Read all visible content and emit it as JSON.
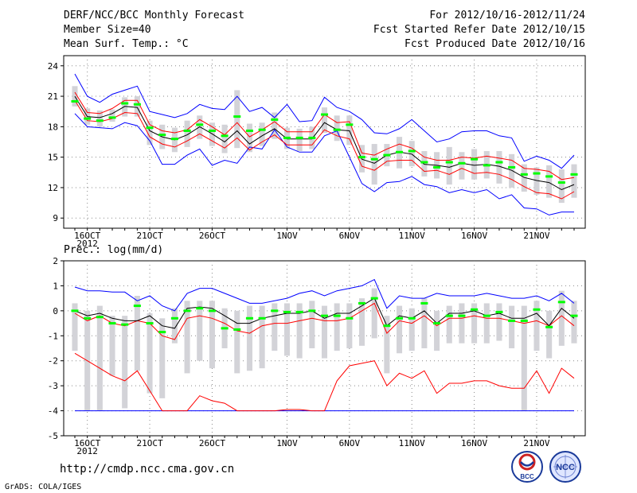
{
  "header": {
    "title": "DERF/NCC/BCC Monthly Forecast",
    "member_size": "Member Size=40",
    "variable": "Mean Surf. Temp.: °C",
    "forecast_range": "For 2012/10/16-2012/11/24",
    "start_date": "Fcst Started Refer Date 2012/10/15",
    "produced_date": "Fcst Produced Date 2012/10/16"
  },
  "footer": {
    "url": "http://cmdp.ncc.cma.gov.cn",
    "grads": "GrADS: COLA/IGES",
    "logo_bcc": "BCC",
    "logo_ncc": "NCC"
  },
  "colors": {
    "mean": "#000000",
    "spread": "#ff0000",
    "envelope": "#0000ff",
    "median": "#00ff00",
    "box": "#d3d3d8",
    "grid": "#888888"
  },
  "chart_data": [
    {
      "type": "box",
      "title": "Mean Surf. Temp.: °C",
      "xlabel": "",
      "ylabel": "",
      "ylim": [
        8,
        25
      ],
      "yticks": [
        9,
        12,
        15,
        18,
        21,
        24
      ],
      "x_ticks": [
        {
          "day": 1,
          "label": "16OCT",
          "sub": "2012"
        },
        {
          "day": 6,
          "label": "21OCT"
        },
        {
          "day": 11,
          "label": "26OCT"
        },
        {
          "day": 17,
          "label": "1NOV"
        },
        {
          "day": 22,
          "label": "6NOV"
        },
        {
          "day": 27,
          "label": "11NOV"
        },
        {
          "day": 32,
          "label": "16NOV"
        },
        {
          "day": 37,
          "label": "21NOV"
        }
      ],
      "days": 40,
      "series": [
        {
          "name": "ensemble max",
          "color": "#0000ff",
          "values": [
            23.2,
            21.0,
            20.4,
            21.2,
            21.6,
            22.0,
            19.5,
            19.2,
            18.9,
            19.3,
            20.2,
            19.8,
            19.7,
            21.0,
            19.5,
            19.9,
            18.9,
            20.2,
            18.5,
            18.6,
            20.9,
            19.9,
            19.5,
            18.7,
            17.4,
            17.3,
            17.8,
            18.7,
            17.6,
            16.5,
            16.8,
            17.5,
            17.6,
            17.6,
            17.1,
            16.9,
            14.6,
            15.1,
            14.7,
            13.9,
            15.2
          ]
        },
        {
          "name": "ensemble min",
          "color": "#0000ff",
          "values": [
            19.3,
            18.0,
            17.9,
            17.8,
            18.4,
            18.1,
            16.6,
            14.3,
            14.3,
            15.2,
            15.8,
            14.2,
            14.7,
            14.4,
            16.0,
            15.8,
            17.7,
            16.0,
            15.5,
            15.5,
            17.1,
            17.6,
            15.0,
            12.4,
            11.6,
            12.5,
            12.6,
            13.1,
            12.3,
            12.1,
            11.5,
            11.8,
            11.5,
            11.8,
            10.9,
            11.3,
            10.0,
            9.9,
            9.3,
            9.6,
            9.6
          ]
        },
        {
          "name": "mean + spread",
          "color": "#ff0000",
          "values": [
            21.4,
            19.4,
            19.3,
            19.8,
            20.6,
            20.6,
            18.2,
            17.6,
            17.4,
            17.7,
            18.7,
            18.0,
            17.2,
            18.4,
            17.0,
            17.7,
            18.5,
            17.5,
            17.5,
            17.5,
            19.2,
            18.4,
            18.5,
            15.4,
            15.2,
            15.8,
            16.3,
            15.9,
            15.0,
            14.7,
            14.7,
            15.0,
            14.9,
            15.1,
            14.9,
            14.7,
            13.9,
            13.8,
            13.6,
            12.8,
            13.0
          ]
        },
        {
          "name": "mean - spread",
          "color": "#ff0000",
          "values": [
            20.6,
            18.6,
            18.5,
            18.8,
            19.4,
            19.3,
            17.0,
            16.3,
            16.0,
            16.6,
            17.3,
            16.6,
            15.9,
            16.9,
            15.7,
            16.5,
            17.2,
            16.2,
            16.2,
            16.2,
            17.7,
            17.1,
            16.8,
            14.1,
            13.7,
            14.6,
            14.7,
            14.7,
            13.6,
            13.7,
            13.3,
            13.9,
            13.4,
            13.5,
            13.3,
            12.8,
            12.1,
            11.5,
            11.4,
            10.9,
            11.6
          ]
        },
        {
          "name": "ensemble mean",
          "color": "#000000",
          "values": [
            21.0,
            19.0,
            18.9,
            19.3,
            20.0,
            19.9,
            17.6,
            17.0,
            16.7,
            17.2,
            18.0,
            17.3,
            16.5,
            17.6,
            16.3,
            17.1,
            17.8,
            16.8,
            16.8,
            16.8,
            18.4,
            17.7,
            17.6,
            14.8,
            14.4,
            15.2,
            15.5,
            15.3,
            14.3,
            14.2,
            14.0,
            14.4,
            14.2,
            14.3,
            14.1,
            13.7,
            13.0,
            12.7,
            12.5,
            11.8,
            12.3
          ]
        },
        {
          "name": "median",
          "color": "#00ff00",
          "values": [
            20.5,
            18.8,
            18.6,
            18.9,
            20.3,
            20.2,
            17.9,
            17.2,
            16.8,
            17.6,
            18.2,
            17.6,
            17.1,
            19.0,
            17.6,
            17.7,
            18.7,
            16.9,
            16.9,
            16.9,
            19.2,
            17.7,
            18.2,
            15.0,
            14.8,
            15.2,
            15.5,
            15.6,
            14.5,
            14.0,
            14.5,
            14.4,
            14.8,
            14.2,
            14.5,
            14.0,
            13.3,
            13.4,
            13.1,
            12.5,
            13.3
          ]
        },
        {
          "name": "box upper",
          "color": "#d3d3d8",
          "values": [
            22.0,
            19.8,
            19.6,
            19.7,
            20.9,
            21.0,
            18.6,
            18.2,
            17.9,
            18.6,
            19.1,
            18.4,
            18.2,
            21.6,
            18.3,
            18.4,
            19.4,
            17.9,
            17.8,
            18.0,
            19.9,
            19.1,
            19.1,
            16.2,
            16.3,
            16.3,
            17.0,
            16.6,
            15.6,
            15.5,
            16.0,
            15.5,
            15.8,
            15.6,
            15.6,
            15.3,
            14.3,
            14.0,
            14.2,
            13.8,
            14.3
          ]
        },
        {
          "name": "box lower",
          "color": "#d3d3d8",
          "values": [
            20.0,
            18.2,
            18.0,
            18.5,
            19.0,
            19.0,
            16.2,
            15.8,
            15.5,
            16.0,
            16.8,
            16.1,
            15.4,
            15.9,
            15.5,
            16.1,
            16.8,
            15.8,
            15.6,
            15.8,
            17.4,
            16.6,
            16.2,
            13.5,
            12.3,
            14.1,
            13.9,
            14.1,
            13.1,
            12.9,
            12.3,
            12.8,
            12.8,
            12.9,
            12.4,
            12.0,
            11.6,
            11.3,
            11.0,
            10.5,
            11.0
          ]
        }
      ]
    },
    {
      "type": "box",
      "title": "Prec.: log(mm/d)",
      "xlabel": "",
      "ylabel": "",
      "ylim": [
        -5,
        2
      ],
      "yticks": [
        -5,
        -4,
        -3,
        -2,
        -1,
        0,
        1,
        2
      ],
      "x_ticks": [
        {
          "day": 1,
          "label": "16OCT",
          "sub": "2012"
        },
        {
          "day": 6,
          "label": "21OCT"
        },
        {
          "day": 11,
          "label": "26OCT"
        },
        {
          "day": 17,
          "label": "1NOV"
        },
        {
          "day": 22,
          "label": "6NOV"
        },
        {
          "day": 27,
          "label": "11NOV"
        },
        {
          "day": 32,
          "label": "16NOV"
        },
        {
          "day": 37,
          "label": "21NOV"
        }
      ],
      "days": 40,
      "series": [
        {
          "name": "ensemble max",
          "color": "#0000ff",
          "values": [
            0.95,
            0.8,
            0.8,
            0.75,
            0.75,
            0.4,
            0.6,
            0.2,
            0.0,
            0.7,
            0.9,
            0.9,
            0.7,
            0.5,
            0.3,
            0.3,
            0.4,
            0.5,
            0.7,
            0.8,
            0.6,
            0.8,
            0.9,
            1.0,
            1.25,
            0.1,
            0.6,
            0.5,
            0.5,
            0.7,
            0.6,
            0.6,
            0.6,
            0.7,
            0.6,
            0.5,
            0.5,
            0.6,
            0.4,
            0.7,
            0.3
          ]
        },
        {
          "name": "ensemble min",
          "color": "#0000ff",
          "values": [
            -4,
            -4,
            -4,
            -4,
            -4,
            -4,
            -4,
            -4,
            -4,
            -4,
            -4,
            -4,
            -4,
            -4,
            -4,
            -4,
            -4,
            -4,
            -4,
            -4,
            -4,
            -4,
            -4,
            -4,
            -4,
            -4,
            -4,
            -4,
            -4,
            -4,
            -4,
            -4,
            -4,
            -4,
            -4,
            -4,
            -4,
            -4,
            -4,
            -4,
            -4
          ]
        },
        {
          "name": "mean + spread",
          "color": "#ff0000",
          "values": [
            -0.1,
            -0.4,
            -0.2,
            -0.5,
            -0.6,
            -0.4,
            -0.5,
            -1.0,
            -1.15,
            -0.3,
            -0.2,
            -0.3,
            -0.5,
            -0.8,
            -0.9,
            -0.6,
            -0.5,
            -0.5,
            -0.4,
            -0.3,
            -0.4,
            -0.4,
            -0.3,
            0.0,
            0.3,
            -0.9,
            -0.4,
            -0.5,
            -0.2,
            -0.6,
            -0.3,
            -0.3,
            -0.2,
            -0.3,
            -0.3,
            -0.4,
            -0.5,
            -0.4,
            -0.6,
            -0.2,
            -0.6
          ]
        },
        {
          "name": "mean - spread",
          "color": "#ff0000",
          "values": [
            -1.7,
            -2.0,
            -2.3,
            -2.6,
            -2.8,
            -2.4,
            -3.2,
            -4.0,
            -4.0,
            -4.0,
            -3.4,
            -3.6,
            -3.7,
            -4.0,
            -4.0,
            -4.0,
            -4.0,
            -3.95,
            -3.95,
            -4.0,
            -4.0,
            -2.8,
            -2.2,
            -2.1,
            -2.0,
            -3.0,
            -2.5,
            -2.7,
            -2.4,
            -3.3,
            -2.9,
            -2.9,
            -2.8,
            -2.8,
            -3.0,
            -3.1,
            -3.1,
            -2.4,
            -3.3,
            -2.3,
            -2.7
          ]
        },
        {
          "name": "ensemble mean",
          "color": "#000000",
          "values": [
            0.0,
            -0.2,
            -0.1,
            -0.3,
            -0.4,
            -0.4,
            -0.2,
            -0.6,
            -0.7,
            0.1,
            0.15,
            0.1,
            -0.2,
            -0.5,
            -0.5,
            -0.3,
            -0.2,
            -0.1,
            -0.1,
            0.0,
            -0.3,
            -0.1,
            -0.1,
            0.2,
            0.5,
            -0.6,
            -0.2,
            -0.3,
            0.0,
            -0.5,
            -0.1,
            -0.1,
            0.0,
            -0.2,
            -0.1,
            -0.3,
            -0.3,
            -0.1,
            -0.6,
            0.1,
            -0.3
          ]
        },
        {
          "name": "median",
          "color": "#00ff00",
          "values": [
            0.0,
            -0.3,
            -0.25,
            -0.5,
            -0.55,
            0.2,
            -0.5,
            -0.85,
            -0.3,
            0.0,
            0.1,
            0.0,
            -0.7,
            -0.75,
            -0.3,
            -0.3,
            0.0,
            -0.05,
            -0.05,
            0.0,
            -0.2,
            -0.2,
            -0.3,
            0.3,
            0.5,
            -0.6,
            -0.3,
            -0.3,
            0.3,
            -0.5,
            -0.2,
            -0.2,
            0.05,
            -0.2,
            -0.05,
            -0.4,
            -0.4,
            0.05,
            -0.65,
            0.35,
            -0.2
          ]
        },
        {
          "name": "box upper",
          "color": "#d3d3d8",
          "values": [
            0.3,
            0.0,
            0.2,
            -0.2,
            -0.2,
            0.6,
            -0.1,
            -0.3,
            0.1,
            0.4,
            0.4,
            0.4,
            0.1,
            0.0,
            0.2,
            0.2,
            0.3,
            0.3,
            0.3,
            0.4,
            0.2,
            0.3,
            0.3,
            0.5,
            0.9,
            -0.2,
            0.2,
            0.1,
            0.5,
            0.0,
            0.2,
            0.3,
            0.3,
            0.3,
            0.3,
            0.2,
            0.2,
            0.4,
            0.0,
            0.8,
            0.4
          ]
        },
        {
          "name": "box lower",
          "color": "#d3d3d8",
          "values": [
            -1.6,
            -4.0,
            -4.0,
            -2.6,
            -3.9,
            -2.4,
            -3.3,
            -3.5,
            -1.3,
            -2.5,
            -2.0,
            -2.3,
            -1.5,
            -2.5,
            -2.4,
            -2.3,
            -1.6,
            -1.8,
            -1.9,
            -1.5,
            -1.9,
            -1.6,
            -1.5,
            -1.4,
            -1.1,
            -2.5,
            -1.7,
            -1.6,
            -1.5,
            -1.6,
            -1.3,
            -1.3,
            -1.3,
            -1.3,
            -1.2,
            -1.5,
            -4.0,
            -1.6,
            -1.9,
            -1.4,
            -1.3
          ]
        }
      ]
    }
  ]
}
